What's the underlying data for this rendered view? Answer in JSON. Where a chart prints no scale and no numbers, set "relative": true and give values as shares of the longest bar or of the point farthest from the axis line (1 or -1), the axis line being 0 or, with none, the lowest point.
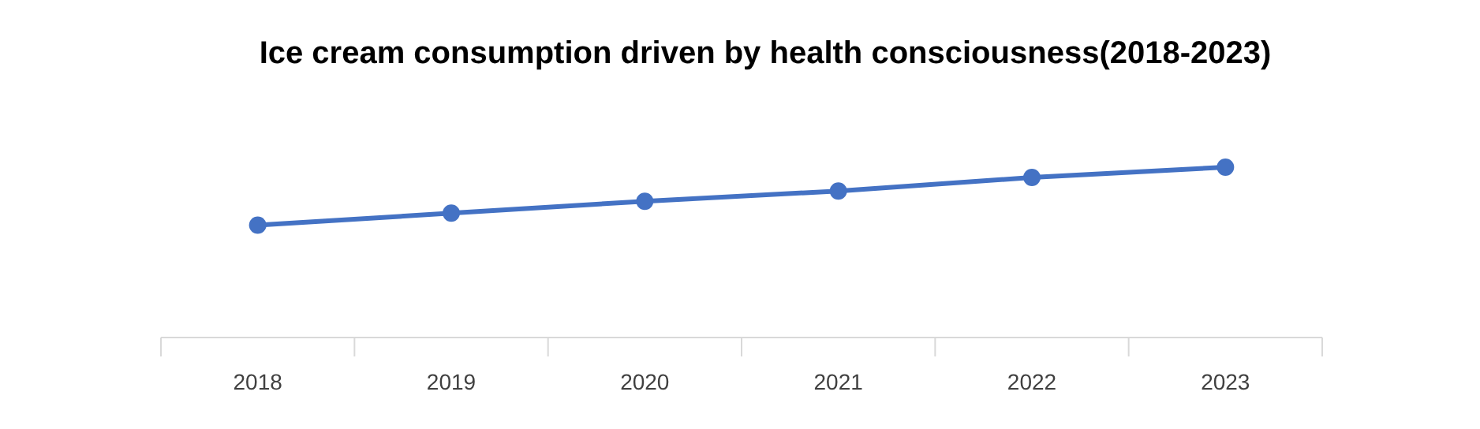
{
  "chart_data": {
    "type": "line",
    "title": "Ice cream consumption  driven by health consciousness(2018-2023)",
    "categories": [
      "2018",
      "2019",
      "2020",
      "2021",
      "2022",
      "2023"
    ],
    "relative": true,
    "marker": "circle",
    "series": [
      {
        "color": "#4472c4",
        "values": [
          0.66,
          0.73,
          0.8,
          0.86,
          0.94,
          1
        ]
      }
    ]
  }
}
